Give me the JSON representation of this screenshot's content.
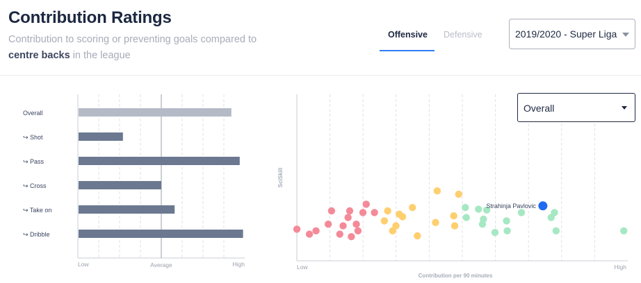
{
  "header": {
    "title": "Contribution Ratings",
    "subtitle_part1": "Contribution to scoring or preventing goals compared to",
    "subtitle_bold": "centre backs",
    "subtitle_part2": "in the league"
  },
  "tabs": [
    {
      "label": "Offensive",
      "active": true
    },
    {
      "label": "Defensive",
      "active": false
    }
  ],
  "league_select": {
    "value": "2019/2020 - Super Liga"
  },
  "metric_select": {
    "value": "Overall"
  },
  "colors": {
    "accent": "#2e7cf6",
    "bar_overall": "#b4bbc7",
    "bar_component": "#6b7890",
    "low": "#f48a98",
    "mid": "#fdcf6e",
    "high": "#a6e8c3",
    "highlight": "#1f6af0"
  },
  "chart_data": [
    {
      "type": "bar",
      "orientation": "horizontal",
      "categories": [
        "Overall",
        "↪ Shot",
        "↪ Pass",
        "↪ Cross",
        "↪ Take on",
        "↪ Dribble"
      ],
      "values": [
        0.92,
        0.27,
        0.97,
        0.5,
        0.58,
        0.99
      ],
      "value_scale": "fraction from Low (0) to High (1); Average at 0.5",
      "x_tick_labels": [
        "Low",
        "Average",
        "High"
      ],
      "xlim": [
        0,
        1
      ],
      "grid": true
    },
    {
      "type": "scatter",
      "xlabel": "Contribution per 90 minutes",
      "ylabel": "SciSkill",
      "x_tick_labels": [
        "Low",
        "High"
      ],
      "xlim": [
        0,
        1
      ],
      "ylim": [
        0,
        1
      ],
      "grid": true,
      "highlight": {
        "label": "Strahinja Pavlovic",
        "x": 0.745,
        "y": 0.33
      },
      "points": [
        {
          "x": 0.0,
          "y": 0.19,
          "group": "low"
        },
        {
          "x": 0.038,
          "y": 0.16,
          "group": "low"
        },
        {
          "x": 0.058,
          "y": 0.18,
          "group": "low"
        },
        {
          "x": 0.095,
          "y": 0.22,
          "group": "low"
        },
        {
          "x": 0.105,
          "y": 0.3,
          "group": "low"
        },
        {
          "x": 0.13,
          "y": 0.16,
          "group": "low"
        },
        {
          "x": 0.14,
          "y": 0.21,
          "group": "low"
        },
        {
          "x": 0.155,
          "y": 0.26,
          "group": "low"
        },
        {
          "x": 0.16,
          "y": 0.3,
          "group": "low"
        },
        {
          "x": 0.165,
          "y": 0.145,
          "group": "low"
        },
        {
          "x": 0.18,
          "y": 0.22,
          "group": "low"
        },
        {
          "x": 0.185,
          "y": 0.18,
          "group": "low"
        },
        {
          "x": 0.2,
          "y": 0.29,
          "group": "low"
        },
        {
          "x": 0.21,
          "y": 0.34,
          "group": "low"
        },
        {
          "x": 0.235,
          "y": 0.29,
          "group": "low"
        },
        {
          "x": 0.265,
          "y": 0.24,
          "group": "mid"
        },
        {
          "x": 0.275,
          "y": 0.3,
          "group": "mid"
        },
        {
          "x": 0.29,
          "y": 0.18,
          "group": "mid"
        },
        {
          "x": 0.3,
          "y": 0.21,
          "group": "mid"
        },
        {
          "x": 0.31,
          "y": 0.28,
          "group": "mid"
        },
        {
          "x": 0.32,
          "y": 0.265,
          "group": "mid"
        },
        {
          "x": 0.35,
          "y": 0.32,
          "group": "mid"
        },
        {
          "x": 0.365,
          "y": 0.15,
          "group": "mid"
        },
        {
          "x": 0.42,
          "y": 0.23,
          "group": "mid"
        },
        {
          "x": 0.425,
          "y": 0.42,
          "group": "mid"
        },
        {
          "x": 0.475,
          "y": 0.27,
          "group": "mid"
        },
        {
          "x": 0.478,
          "y": 0.21,
          "group": "mid"
        },
        {
          "x": 0.49,
          "y": 0.4,
          "group": "mid"
        },
        {
          "x": 0.51,
          "y": 0.32,
          "group": "high"
        },
        {
          "x": 0.513,
          "y": 0.26,
          "group": "high"
        },
        {
          "x": 0.55,
          "y": 0.31,
          "group": "high"
        },
        {
          "x": 0.562,
          "y": 0.22,
          "group": "high"
        },
        {
          "x": 0.565,
          "y": 0.25,
          "group": "high"
        },
        {
          "x": 0.575,
          "y": 0.305,
          "group": "high"
        },
        {
          "x": 0.6,
          "y": 0.17,
          "group": "high"
        },
        {
          "x": 0.635,
          "y": 0.24,
          "group": "high"
        },
        {
          "x": 0.637,
          "y": 0.18,
          "group": "high"
        },
        {
          "x": 0.68,
          "y": 0.29,
          "group": "high"
        },
        {
          "x": 0.77,
          "y": 0.26,
          "group": "high"
        },
        {
          "x": 0.78,
          "y": 0.29,
          "group": "high"
        },
        {
          "x": 0.785,
          "y": 0.18,
          "group": "high"
        },
        {
          "x": 0.99,
          "y": 0.18,
          "group": "high"
        }
      ]
    }
  ]
}
